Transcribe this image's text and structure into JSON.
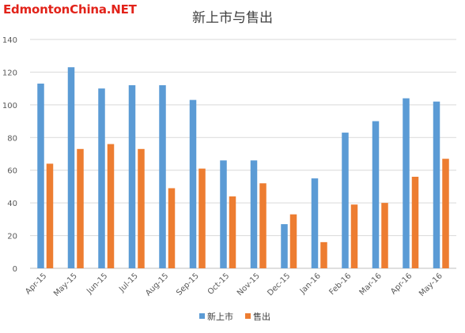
{
  "watermark": {
    "text": "EdmontonChina.NET",
    "color": "#e2231a"
  },
  "chart_data": {
    "type": "bar",
    "title": "新上市与售出",
    "xlabel": "",
    "ylabel": "",
    "ylim": [
      0,
      140
    ],
    "yticks": [
      0,
      20,
      40,
      60,
      80,
      100,
      120,
      140
    ],
    "grid": true,
    "legend_position": "bottom",
    "categories": [
      "Apr-15",
      "May-15",
      "Jun-15",
      "Jul-15",
      "Aug-15",
      "Sep-15",
      "Oct-15",
      "Nov-15",
      "Dec-15",
      "Jan-16",
      "Feb-16",
      "Mar-16",
      "Apr-16",
      "May-16"
    ],
    "series": [
      {
        "name": "新上市",
        "color": "#5b9bd5",
        "values": [
          113,
          123,
          110,
          112,
          112,
          103,
          66,
          66,
          27,
          55,
          83,
          90,
          104,
          102
        ]
      },
      {
        "name": "售出",
        "color": "#ed7d31",
        "values": [
          64,
          73,
          76,
          73,
          49,
          61,
          44,
          52,
          33,
          16,
          39,
          40,
          56,
          67
        ]
      }
    ]
  }
}
